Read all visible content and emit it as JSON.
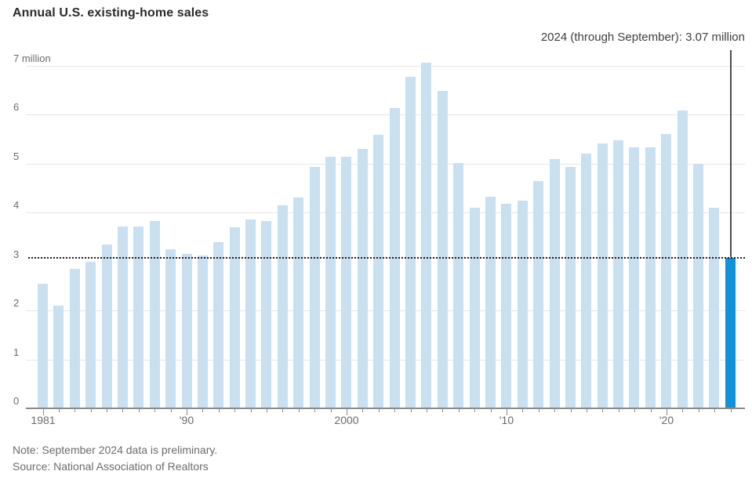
{
  "title": "Annual U.S. existing-home sales",
  "annotation": {
    "label": "2024 (through September): 3.07 million",
    "value": 3.07
  },
  "note": "Note: September 2024 data is preliminary.",
  "source": "Source: National Association of Realtors",
  "y_axis": {
    "top_label": "7 million",
    "tick_labels": [
      "7 million",
      "6",
      "5",
      "4",
      "3",
      "2",
      "1",
      "0"
    ]
  },
  "x_axis": {
    "labels": [
      {
        "text": "1981",
        "year": 1981
      },
      {
        "text": "'90",
        "year": 1990
      },
      {
        "text": "2000",
        "year": 2000
      },
      {
        "text": "'10",
        "year": 2010
      },
      {
        "text": "'20",
        "year": 2020
      }
    ]
  },
  "colors": {
    "bar": "#c9dff2",
    "bar_highlight": "#1191d8",
    "gridline": "#e6e6e6",
    "axis": "#8a8a8a",
    "dotted_line": "#1a1a1a",
    "annotation_line": "#4d4d4d",
    "text_muted": "#6b6b6b",
    "title_text": "#2b2b2b"
  },
  "chart_data": {
    "type": "bar",
    "title": "Annual U.S. existing-home sales",
    "unit": "million homes",
    "ylim": [
      0,
      7
    ],
    "grid": true,
    "reference_line_value": 3.07,
    "highlight_year": 2024,
    "categories": [
      1981,
      1982,
      1983,
      1984,
      1985,
      1986,
      1987,
      1988,
      1989,
      1990,
      1991,
      1992,
      1993,
      1994,
      1995,
      1996,
      1997,
      1998,
      1999,
      2000,
      2001,
      2002,
      2003,
      2004,
      2005,
      2006,
      2007,
      2008,
      2009,
      2010,
      2011,
      2012,
      2013,
      2014,
      2015,
      2016,
      2017,
      2018,
      2019,
      2020,
      2021,
      2022,
      2023,
      2024
    ],
    "values": [
      2.55,
      2.1,
      2.85,
      3.0,
      3.35,
      3.72,
      3.72,
      3.83,
      3.25,
      3.15,
      3.12,
      3.4,
      3.7,
      3.86,
      3.83,
      4.15,
      4.31,
      4.94,
      5.14,
      5.14,
      5.3,
      5.59,
      6.13,
      6.78,
      7.07,
      6.48,
      5.02,
      4.1,
      4.33,
      4.18,
      4.25,
      4.65,
      5.1,
      4.94,
      5.2,
      5.42,
      5.48,
      5.33,
      5.33,
      5.61,
      6.09,
      5.0,
      4.1,
      3.07
    ]
  }
}
